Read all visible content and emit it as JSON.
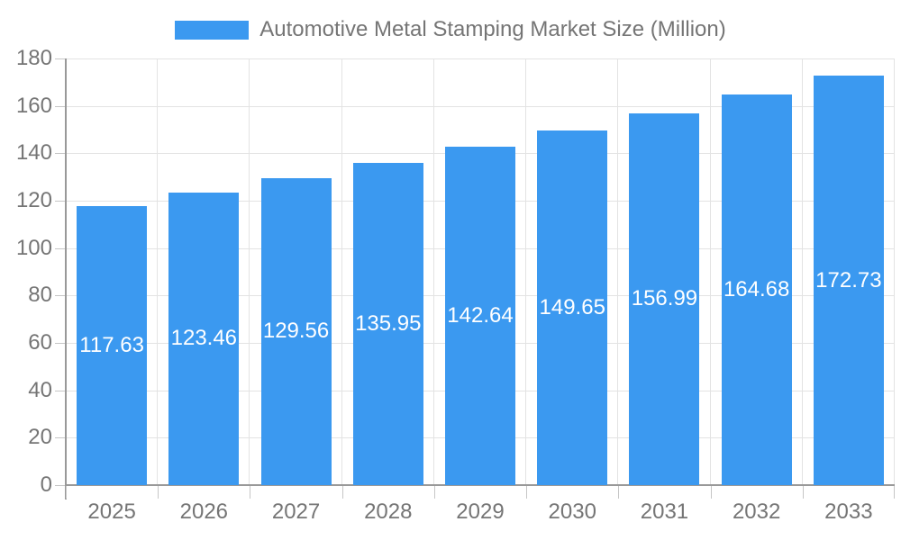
{
  "chart_data": {
    "type": "bar",
    "title": "Automotive Metal Stamping Market Size (Million)",
    "categories": [
      "2025",
      "2026",
      "2027",
      "2028",
      "2029",
      "2030",
      "2031",
      "2032",
      "2033"
    ],
    "values": [
      117.63,
      123.46,
      129.56,
      135.95,
      142.64,
      149.65,
      156.99,
      164.68,
      172.73
    ],
    "value_labels": [
      "117.63",
      "123.46",
      "129.56",
      "135.95",
      "142.64",
      "149.65",
      "156.99",
      "164.68",
      "172.73"
    ],
    "xlabel": "",
    "ylabel": "",
    "ylim": [
      0,
      180
    ],
    "ytick_interval": 20,
    "ytick_labels": [
      "0",
      "20",
      "40",
      "60",
      "80",
      "100",
      "120",
      "140",
      "160",
      "180"
    ],
    "grid": true,
    "legend_position": "top",
    "colors": {
      "bar": "#3b99f0",
      "bar_label": "#ffffff",
      "axis": "#999999",
      "grid": "#e3e3e3",
      "tick": "#c6c6c6",
      "text": "#757575"
    }
  }
}
